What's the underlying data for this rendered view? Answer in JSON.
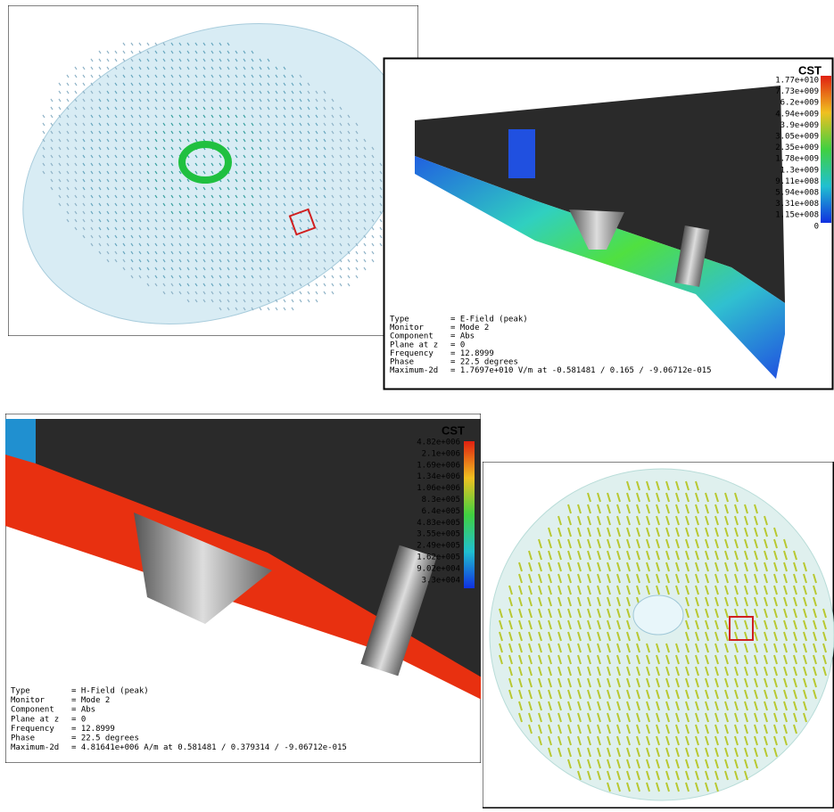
{
  "panels": [
    {
      "id": "e-field-3d"
    },
    {
      "id": "e-field-2d",
      "logo": "CST",
      "legend": [
        "1.77e+010",
        "7.73e+009",
        "6.2e+009",
        "4.94e+009",
        "3.9e+009",
        "3.05e+009",
        "2.35e+009",
        "1.78e+009",
        "1.3e+009",
        "9.11e+008",
        "5.94e+008",
        "3.31e+008",
        "1.15e+008",
        "0"
      ],
      "info": [
        [
          "Type",
          "= E-Field (peak)"
        ],
        [
          "Monitor",
          "= Mode 2"
        ],
        [
          "Component",
          "= Abs"
        ],
        [
          "Plane at z",
          "= 0"
        ],
        [
          "Frequency",
          "= 12.8999"
        ],
        [
          "Phase",
          "= 22.5 degrees"
        ],
        [
          "Maximum-2d",
          "= 1.7697e+010 V/m at -0.581481 / 0.165 / -9.06712e-015"
        ]
      ]
    },
    {
      "id": "h-field-2d",
      "logo": "CST",
      "legend": [
        "4.82e+006",
        "2.1e+006",
        "1.69e+006",
        "1.34e+006",
        "1.06e+006",
        "8.3e+005",
        "6.4e+005",
        "4.83e+005",
        "3.55e+005",
        "2.49e+005",
        "1.62e+005",
        "9.02e+004",
        "3.3e+004"
      ],
      "info": [
        [
          "Type",
          "= H-Field (peak)"
        ],
        [
          "Monitor",
          "= Mode 2"
        ],
        [
          "Component",
          "= Abs"
        ],
        [
          "Plane at z",
          "= 0"
        ],
        [
          "Frequency",
          "= 12.8999"
        ],
        [
          "Phase",
          "= 22.5 degrees"
        ],
        [
          "Maximum-2d",
          "= 4.81641e+006 A/m at 0.581481 / 0.379314 / -9.06712e-015"
        ]
      ]
    },
    {
      "id": "h-field-3d"
    }
  ]
}
